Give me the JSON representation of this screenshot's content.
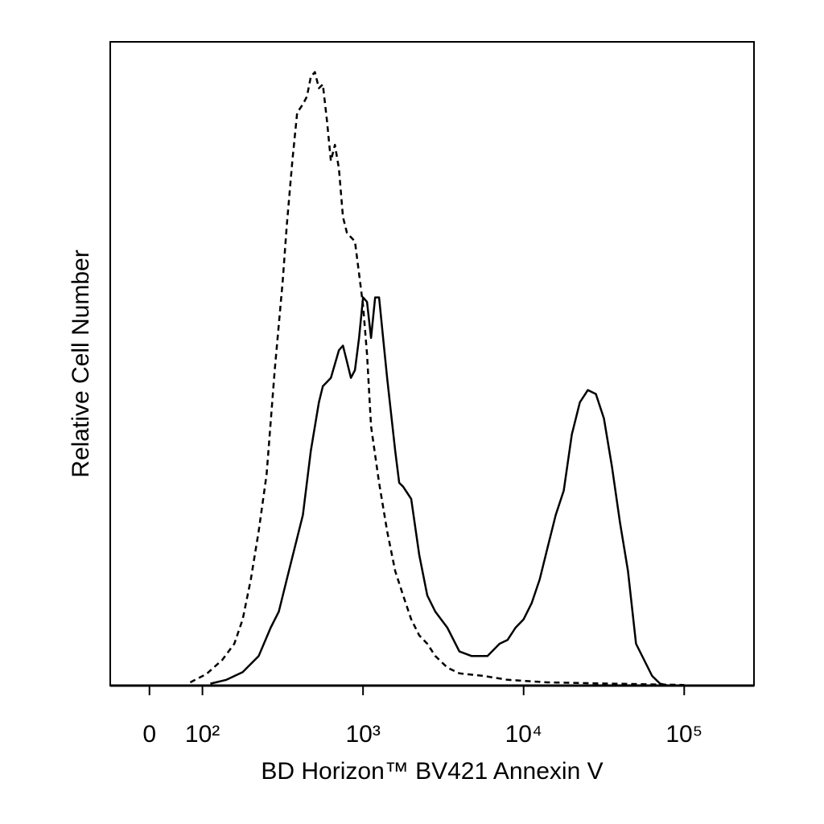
{
  "chart_data": {
    "type": "line",
    "xlabel": "BD Horizon™ BV421 Annexin V",
    "ylabel": "Relative Cell Number",
    "xscale": "symlog",
    "linthresh": 100,
    "xlim": [
      -74,
      272000
    ],
    "xticks": [
      0,
      {
        "value": 100,
        "label": "10²"
      },
      {
        "value": 1000,
        "label": "10³"
      },
      {
        "value": 10000,
        "label": "10⁴"
      },
      {
        "value": 100000,
        "label": "10⁵"
      }
    ],
    "ylim": [
      0,
      100
    ],
    "series": [
      {
        "color": "#000000",
        "dashed": true,
        "x": [
          77,
          106,
          133,
          158,
          178,
          200,
          224,
          251,
          282,
          316,
          335,
          363,
          389,
          422,
          447,
          473,
          501,
          531,
          562,
          596,
          631,
          668,
          708,
          750,
          794,
          891,
          944,
          1000,
          1059,
          1122,
          1259,
          1413,
          1585,
          1778,
          1995,
          2239,
          2512,
          2818,
          3350,
          3981,
          5623,
          7943,
          14125,
          35481,
          100000
        ],
        "values": [
          0.5,
          1.8,
          4,
          6.5,
          10.3,
          16.5,
          24,
          32.8,
          49,
          62.8,
          71.5,
          81.5,
          89,
          90.3,
          91.5,
          94.6,
          95.3,
          92.8,
          93.4,
          87.8,
          81.5,
          84,
          80.3,
          72.8,
          70.3,
          69,
          64,
          59,
          51.5,
          40.3,
          31.5,
          24,
          17.8,
          14,
          10.3,
          7.8,
          6.5,
          4.6,
          2.8,
          1.9,
          1.5,
          0.9,
          0.5,
          0.3,
          0.1
        ]
      },
      {
        "color": "#000000",
        "dashed": false,
        "x": [
          112,
          141,
          178,
          224,
          266,
          299,
          335,
          376,
          422,
          473,
          531,
          562,
          631,
          708,
          750,
          794,
          841,
          891,
          944,
          1000,
          1059,
          1122,
          1189,
          1259,
          1334,
          1413,
          1585,
          1679,
          1778,
          1995,
          2239,
          2512,
          2818,
          3350,
          3981,
          4732,
          5957,
          7079,
          7943,
          8913,
          10000,
          11220,
          12589,
          14125,
          15849,
          17783,
          19953,
          22387,
          25119,
          28184,
          31623,
          35481,
          39811,
          44668,
          50119,
          56234,
          63096,
          70795,
          79433
        ],
        "values": [
          0.3,
          0.9,
          2.1,
          4.6,
          9,
          11.5,
          16.5,
          21.5,
          26.5,
          36.5,
          44,
          46.5,
          47.8,
          52.1,
          52.8,
          50.3,
          47.8,
          49,
          54,
          60.3,
          59.6,
          54,
          60.3,
          60.3,
          54,
          47.8,
          36.5,
          31.5,
          30.9,
          29,
          20.3,
          14,
          11.5,
          9,
          5.3,
          4.6,
          4.6,
          6.5,
          7.1,
          9,
          10.3,
          12.8,
          16.5,
          21.5,
          26.5,
          30.3,
          39,
          44,
          45.9,
          45.3,
          41.5,
          34,
          25.3,
          17.8,
          6.5,
          4,
          1.5,
          0.3,
          0
        ]
      }
    ]
  }
}
